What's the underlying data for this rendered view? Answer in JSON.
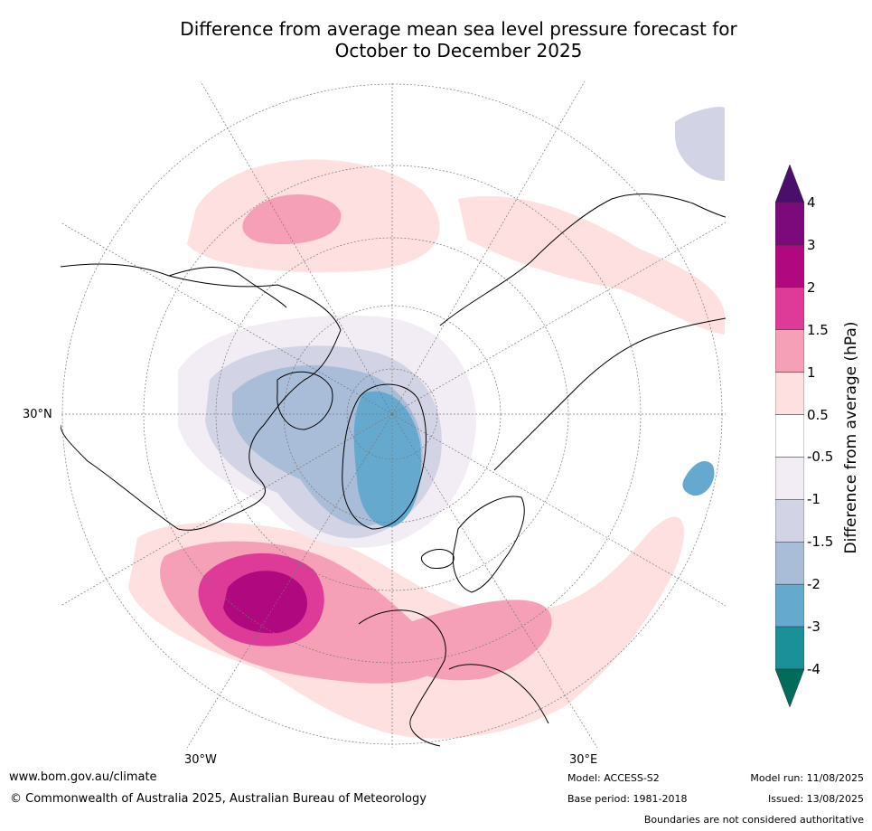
{
  "title_line1": "Difference from average mean sea level pressure forecast for",
  "title_line2": "October to December 2025",
  "graticule_labels": {
    "lat_30n": "30°N",
    "lon_30w": "30°W",
    "lon_30e": "30°E"
  },
  "colorbar": {
    "title": "Difference from average (hPa)",
    "ticks": [
      "4",
      "3",
      "2",
      "1.5",
      "1",
      "0.5",
      "-0.5",
      "-1",
      "-1.5",
      "-2",
      "-3",
      "-4"
    ],
    "bins": [
      {
        "range": "> 4",
        "color": "#4a0f6b"
      },
      {
        "range": "3 to 4",
        "color": "#7d0a7a"
      },
      {
        "range": "2 to 3",
        "color": "#b0087e"
      },
      {
        "range": "1.5 to 2",
        "color": "#de3a98"
      },
      {
        "range": "1 to 1.5",
        "color": "#f6a0b8"
      },
      {
        "range": "0.5 to 1",
        "color": "#fde0df"
      },
      {
        "range": "-0.5 to 0.5",
        "color": "#ffffff"
      },
      {
        "range": "-1 to -0.5",
        "color": "#f2ecf4"
      },
      {
        "range": "-1.5 to -1",
        "color": "#d2d4e6"
      },
      {
        "range": "-2 to -1.5",
        "color": "#a9bcd8"
      },
      {
        "range": "-3 to -2",
        "color": "#66a9cf"
      },
      {
        "range": "-4 to -3",
        "color": "#1c9099"
      },
      {
        "range": "< -4",
        "color": "#016c59"
      }
    ]
  },
  "footer": {
    "website": "www.bom.gov.au/climate",
    "copyright": "© Commonwealth of Australia 2025, Australian Bureau of Meteorology",
    "model": "Model: ACCESS-S2",
    "base_period": "Base period: 1981-2018",
    "model_run": "Model run: 11/08/2025",
    "issued": "Issued: 13/08/2025",
    "disclaimer": "Boundaries are not considered authoritative"
  }
}
